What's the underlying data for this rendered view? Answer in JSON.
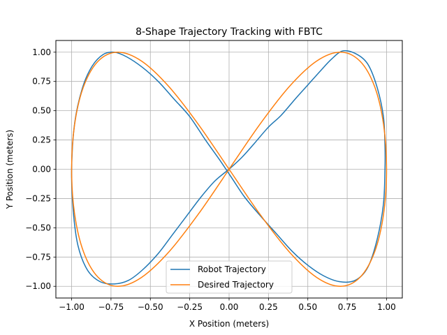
{
  "chart_data": {
    "type": "line",
    "title": "8-Shape Trajectory Tracking with FBTC",
    "xlabel": "X Position (meters)",
    "ylabel": "Y Position (meters)",
    "xlim": [
      -1.1,
      1.1
    ],
    "ylim": [
      -1.1,
      1.1
    ],
    "xticks": [
      "−1.00",
      "−0.75",
      "−0.50",
      "−0.25",
      "0.00",
      "0.25",
      "0.50",
      "0.75",
      "1.00"
    ],
    "yticks": [
      "−1.00",
      "−0.75",
      "−0.50",
      "−0.25",
      "0.00",
      "0.25",
      "0.50",
      "0.75",
      "1.00"
    ],
    "grid": true,
    "legend_position": "bottom-center",
    "series": [
      {
        "name": "Robot Trajectory",
        "color": "#1f77b4",
        "x": [
          0.0,
          0.08,
          0.16,
          0.25,
          0.33,
          0.42,
          0.5,
          0.58,
          0.65,
          0.72,
          0.8,
          0.88,
          0.94,
          0.98,
          0.99,
          0.99,
          0.98,
          0.94,
          0.88,
          0.8,
          0.7,
          0.6,
          0.5,
          0.4,
          0.3,
          0.2,
          0.1,
          0.02,
          -0.06,
          -0.15,
          -0.25,
          -0.35,
          -0.45,
          -0.55,
          -0.65,
          -0.73,
          -0.8,
          -0.87,
          -0.93,
          -0.98,
          -1.0,
          -0.99,
          -0.96,
          -0.9,
          -0.82,
          -0.73,
          -0.64,
          -0.55,
          -0.45,
          -0.36,
          -0.27,
          -0.18,
          -0.09,
          0.0
        ],
        "y": [
          0.0,
          0.1,
          0.22,
          0.36,
          0.46,
          0.6,
          0.72,
          0.84,
          0.94,
          1.01,
          0.99,
          0.9,
          0.7,
          0.45,
          0.2,
          0.0,
          -0.3,
          -0.6,
          -0.84,
          -0.95,
          -0.96,
          -0.91,
          -0.82,
          -0.7,
          -0.55,
          -0.4,
          -0.24,
          -0.08,
          0.08,
          0.25,
          0.45,
          0.6,
          0.75,
          0.87,
          0.96,
          1.0,
          0.98,
          0.88,
          0.7,
          0.4,
          0.0,
          -0.35,
          -0.65,
          -0.86,
          -0.96,
          -0.98,
          -0.95,
          -0.86,
          -0.72,
          -0.56,
          -0.4,
          -0.24,
          -0.1,
          0.0
        ]
      },
      {
        "name": "Desired Trajectory",
        "color": "#ff7f0e",
        "x": [
          0.0,
          0.195,
          0.383,
          0.556,
          0.707,
          0.831,
          0.924,
          0.981,
          1.0,
          0.981,
          0.924,
          0.831,
          0.707,
          0.556,
          0.383,
          0.195,
          0.0,
          -0.195,
          -0.383,
          -0.556,
          -0.707,
          -0.831,
          -0.924,
          -0.981,
          -1.0,
          -0.981,
          -0.924,
          -0.831,
          -0.707,
          -0.556,
          -0.383,
          -0.195,
          0.0
        ],
        "y": [
          0.0,
          0.383,
          0.707,
          0.924,
          1.0,
          0.924,
          0.707,
          0.383,
          0.0,
          -0.383,
          -0.707,
          -0.924,
          -1.0,
          -0.924,
          -0.707,
          -0.383,
          0.0,
          0.383,
          0.707,
          0.924,
          1.0,
          0.924,
          0.707,
          0.383,
          0.0,
          -0.383,
          -0.707,
          -0.924,
          -1.0,
          -0.924,
          -0.707,
          -0.383,
          0.0
        ]
      }
    ]
  }
}
